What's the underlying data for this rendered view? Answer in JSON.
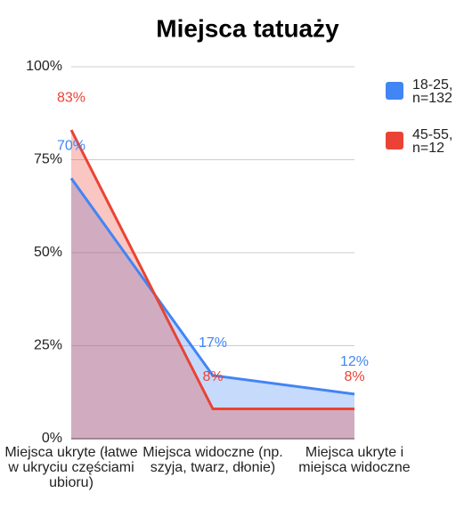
{
  "chart_data": {
    "type": "area",
    "title": "Miejsca tatuaży",
    "categories": [
      "Miejsca ukryte (łatwe w ukryciu częściami ubioru)",
      "Miejsca widoczne (np. szyja, twarz, dłonie)",
      "Miejsca ukryte i miejsca widoczne"
    ],
    "series": [
      {
        "name": "18-25, n=132",
        "color": "#4285f4",
        "values": [
          70,
          17,
          12
        ],
        "value_labels": [
          "70%",
          "17%",
          "12%"
        ]
      },
      {
        "name": "45-55, n=12",
        "color": "#ea4335",
        "values": [
          83,
          8,
          8
        ],
        "value_labels": [
          "83%",
          "8%",
          "8%"
        ]
      }
    ],
    "ylim": [
      0,
      100
    ],
    "yticks": [
      {
        "value": 0,
        "label": "0%"
      },
      {
        "value": 25,
        "label": "25%"
      },
      {
        "value": 50,
        "label": "50%"
      },
      {
        "value": 75,
        "label": "75%"
      },
      {
        "value": 100,
        "label": "100%"
      }
    ],
    "grid": true,
    "legend": "right"
  }
}
